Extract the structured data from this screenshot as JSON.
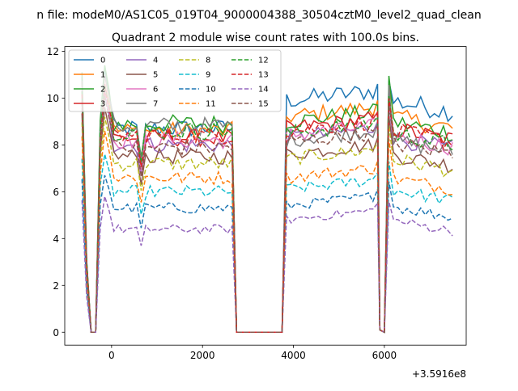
{
  "chart_data": {
    "type": "line",
    "suptitle": "n file: modeM0/AS1C05_019T04_9000004388_30504cztM0_level2_quad_clean",
    "title": "Quadrant 2 module wise count rates with 100.0s bins.",
    "xlabel": "",
    "ylabel": "",
    "x_offset_label": "+3.5916e8",
    "xlim": [
      -1030,
      7800
    ],
    "ylim": [
      -0.55,
      12.2
    ],
    "x_ticks": [
      0,
      2000,
      4000,
      6000
    ],
    "x_tick_labels": [
      "0",
      "2000",
      "4000",
      "6000"
    ],
    "y_ticks": [
      0,
      2,
      4,
      6,
      8,
      10,
      12
    ],
    "y_tick_labels": [
      "0",
      "2",
      "4",
      "6",
      "8",
      "10",
      "12"
    ],
    "grid": false,
    "legend_position": "top-left",
    "legend_columns": 4,
    "segments": [
      {
        "start": -650,
        "end": -350,
        "step": 100,
        "values_at_start_and_end": "drop to zero"
      },
      {
        "start": -350,
        "end": 2750,
        "step": 100
      },
      {
        "start": 2750,
        "end": 3750,
        "step": 100
      },
      {
        "start": 3750,
        "end": 5900,
        "step": 100
      },
      {
        "start": 5900,
        "end": 7550,
        "step": 100
      }
    ],
    "series": [
      {
        "name": "0",
        "color": "#1f77b4",
        "dashed": false,
        "level_active": 8.7,
        "level_late": 9.9,
        "peak": 11.2
      },
      {
        "name": "1",
        "color": "#ff7f0e",
        "dashed": false,
        "level_active": 8.6,
        "level_late": 9.2,
        "peak": 11.0
      },
      {
        "name": "2",
        "color": "#2ca02c",
        "dashed": false,
        "level_active": 8.9,
        "level_late": 9.0,
        "peak": 11.4
      },
      {
        "name": "3",
        "color": "#d62728",
        "dashed": false,
        "level_active": 8.3,
        "level_late": 8.7,
        "peak": 10.6
      },
      {
        "name": "4",
        "color": "#9467bd",
        "dashed": false,
        "level_active": 8.0,
        "level_late": 8.3,
        "peak": 10.2
      },
      {
        "name": "5",
        "color": "#8c564b",
        "dashed": false,
        "level_active": 7.5,
        "level_late": 7.6,
        "peak": 9.6
      },
      {
        "name": "6",
        "color": "#e377c2",
        "dashed": false,
        "level_active": 8.2,
        "level_late": 8.4,
        "peak": 10.4
      },
      {
        "name": "7",
        "color": "#7f7f7f",
        "dashed": false,
        "level_active": 8.8,
        "level_late": 8.2,
        "peak": 11.0
      },
      {
        "name": "8",
        "color": "#bcbd22",
        "dashed": true,
        "level_active": 7.2,
        "level_late": 7.4,
        "peak": 9.2
      },
      {
        "name": "9",
        "color": "#17becf",
        "dashed": true,
        "level_active": 6.0,
        "level_late": 6.1,
        "peak": 7.6
      },
      {
        "name": "10",
        "color": "#1f77b4",
        "dashed": true,
        "level_active": 5.3,
        "level_late": 5.4,
        "peak": 6.7
      },
      {
        "name": "11",
        "color": "#ff7f0e",
        "dashed": true,
        "level_active": 6.6,
        "level_late": 6.6,
        "peak": 8.6
      },
      {
        "name": "12",
        "color": "#2ca02c",
        "dashed": true,
        "level_active": 8.6,
        "level_late": 8.5,
        "peak": 10.5
      },
      {
        "name": "13",
        "color": "#d62728",
        "dashed": true,
        "level_active": 8.4,
        "level_late": 8.6,
        "peak": 10.4
      },
      {
        "name": "14",
        "color": "#9467bd",
        "dashed": true,
        "level_active": 4.4,
        "level_late": 4.8,
        "peak": 5.8
      },
      {
        "name": "15",
        "color": "#8c564b",
        "dashed": true,
        "level_active": 7.9,
        "level_late": 8.1,
        "peak": 10.1
      }
    ]
  }
}
